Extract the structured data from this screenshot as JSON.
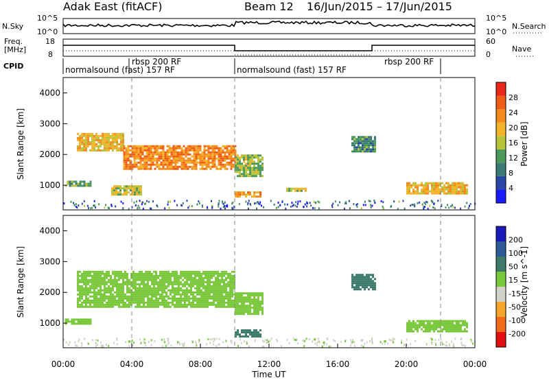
{
  "header": {
    "title": "Adak East (fitACF)",
    "beam_label": "Beam 12",
    "date_range": "16/Jun/2015 – 17/Jun/2015"
  },
  "strip_panels": {
    "nsky": {
      "label": "N.Sky",
      "ticks": [
        "10^5",
        "10^0"
      ],
      "right_label": "N.Search",
      "right_ticks": [
        "10^5",
        "10^0"
      ]
    },
    "freq": {
      "label_line1": "Freq.",
      "label_line2": "[MHz]",
      "ticks": [
        "18",
        "8"
      ],
      "right_label": "Nave",
      "right_ticks": [
        "60",
        "0"
      ]
    },
    "cpid": {
      "label": "CPID",
      "segments": [
        {
          "text": "normalsound (fast) 157 RF",
          "row": "low"
        },
        {
          "text": "rbsp 200 RF",
          "row": "high"
        },
        {
          "text": "normalsound (fast) 157 RF",
          "row": "low"
        },
        {
          "text": "rbsp 200 RF",
          "row": "high"
        }
      ]
    }
  },
  "time_axis": {
    "label": "Time UT",
    "ticks": [
      "00:00",
      "04:00",
      "08:00",
      "12:00",
      "16:00",
      "20:00",
      "00:00"
    ],
    "range_hours": [
      0,
      24
    ],
    "dashed_markers_hours": [
      4,
      10,
      22
    ]
  },
  "colors": {
    "power": [
      "#1a1aff",
      "#2a47a8",
      "#3b7a74",
      "#4c9a5a",
      "#b8c33a",
      "#f3b42a",
      "#f48a1c",
      "#ef5d14",
      "#e8281a"
    ],
    "velocity": [
      "#e01010",
      "#f06a1a",
      "#f3a62a",
      "#d3d2c8",
      "#78c83a",
      "#3c7a6a",
      "#2f5a9a",
      "#1a1ab8"
    ]
  },
  "chart_data": [
    {
      "type": "heatmap",
      "title": "Power",
      "xlabel": "Time UT",
      "ylabel": "Slant Range [km]",
      "xlim": [
        0,
        24
      ],
      "ylim": [
        200,
        4500
      ],
      "yticks": [
        "1000",
        "2000",
        "3000",
        "4000"
      ],
      "colorbar": {
        "label": "Power [dB]",
        "ticks": [
          "4",
          "8",
          "12",
          "16",
          "20",
          "24",
          "28"
        ],
        "range": [
          0,
          30
        ]
      },
      "regions": [
        {
          "t0": 0.1,
          "t1": 1.6,
          "r0": 950,
          "r1": 1150,
          "value": 12
        },
        {
          "t0": 0.8,
          "t1": 3.5,
          "r0": 2150,
          "r1": 2700,
          "value": 18
        },
        {
          "t0": 3.5,
          "t1": 10.0,
          "r0": 1500,
          "r1": 2300,
          "value": 22
        },
        {
          "t0": 2.8,
          "t1": 4.5,
          "r0": 700,
          "r1": 1000,
          "value": 16
        },
        {
          "t0": 10.0,
          "t1": 11.6,
          "r0": 1300,
          "r1": 2000,
          "value": 14
        },
        {
          "t0": 10.0,
          "t1": 11.5,
          "r0": 600,
          "r1": 800,
          "value": 20
        },
        {
          "t0": 13.0,
          "t1": 14.2,
          "r0": 800,
          "r1": 920,
          "value": 15
        },
        {
          "t0": 16.8,
          "t1": 18.2,
          "r0": 2100,
          "r1": 2600,
          "value": 10
        },
        {
          "t0": 20.0,
          "t1": 23.5,
          "r0": 700,
          "r1": 1100,
          "value": 18
        }
      ]
    },
    {
      "type": "heatmap",
      "title": "Velocity",
      "xlabel": "Time UT",
      "ylabel": "Slant Range [km]",
      "xlim": [
        0,
        24
      ],
      "ylim": [
        200,
        4500
      ],
      "yticks": [
        "1000",
        "2000",
        "3000",
        "4000"
      ],
      "colorbar": {
        "label": "Velocity [m s^-1]",
        "ticks": [
          "-200",
          "-100",
          "-50",
          "-15",
          "15",
          "50",
          "100",
          "200"
        ],
        "range": [
          -250,
          250
        ]
      },
      "regions": [
        {
          "t0": 0.1,
          "t1": 1.6,
          "r0": 950,
          "r1": 1150,
          "value": 0
        },
        {
          "t0": 0.8,
          "t1": 10.0,
          "r0": 1500,
          "r1": 2700,
          "value": 0
        },
        {
          "t0": 10.0,
          "t1": 11.6,
          "r0": 1300,
          "r1": 2000,
          "value": 0
        },
        {
          "t0": 10.0,
          "t1": 11.5,
          "r0": 550,
          "r1": 800,
          "value": 40
        },
        {
          "t0": 16.8,
          "t1": 18.2,
          "r0": 2100,
          "r1": 2600,
          "value": 30
        },
        {
          "t0": 20.0,
          "t1": 23.5,
          "r0": 700,
          "r1": 1100,
          "value": -5
        }
      ]
    }
  ]
}
